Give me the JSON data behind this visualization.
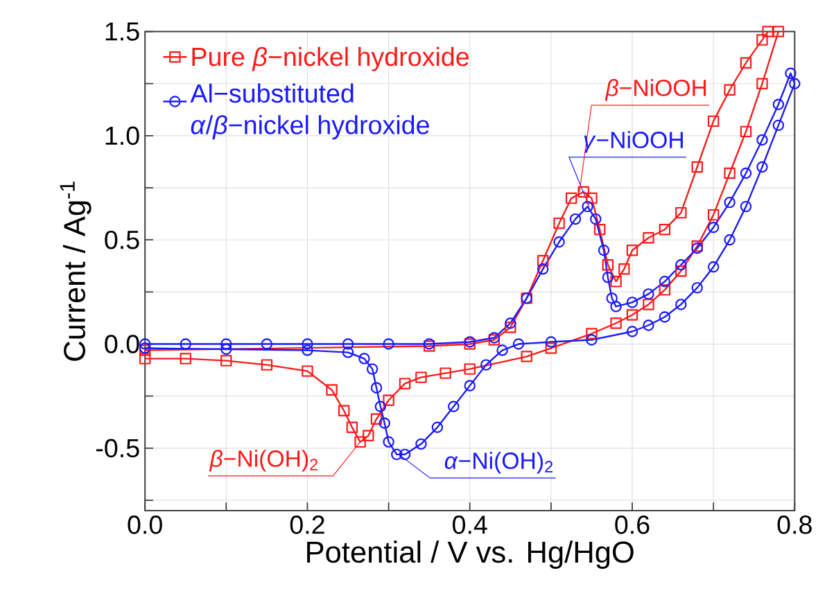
{
  "chart_data": {
    "type": "line",
    "xlabel": "Potential / V vs. Hg/HgO",
    "ylabel": "Current / Ag$^{-1}$",
    "xlim": [
      0,
      0.8
    ],
    "ylim": [
      -0.8,
      1.5
    ],
    "xticks": [
      {
        "value": 0,
        "label": "0.0"
      },
      {
        "value": 0.1,
        "label": null
      },
      {
        "value": 0.2,
        "label": "0.2"
      },
      {
        "value": 0.3,
        "label": null
      },
      {
        "value": 0.4,
        "label": "0.4"
      },
      {
        "value": 0.5,
        "label": null
      },
      {
        "value": 0.6,
        "label": "0.6"
      },
      {
        "value": 0.7,
        "label": null
      },
      {
        "value": 0.8,
        "label": "0.8"
      }
    ],
    "yticks": [
      {
        "value": -0.75,
        "label": null
      },
      {
        "value": -0.5,
        "label": "-0.5"
      },
      {
        "value": -0.25,
        "label": null
      },
      {
        "value": 0,
        "label": "0.0"
      },
      {
        "value": 0.25,
        "label": null
      },
      {
        "value": 0.5,
        "label": "0.5"
      },
      {
        "value": 0.75,
        "label": null
      },
      {
        "value": 1.0,
        "label": "1.0"
      },
      {
        "value": 1.25,
        "label": null
      },
      {
        "value": 1.5,
        "label": "1.5"
      }
    ],
    "grid": true,
    "legend": "top left",
    "line_style": "solid",
    "series": [
      {
        "name": "Pure *β*−nickel hydroxide",
        "color": "#ff1a1a",
        "marker": "square",
        "x": [
          0,
          0.35,
          0.4,
          0.43,
          0.45,
          0.47,
          0.49,
          0.51,
          0.525,
          0.54,
          0.55,
          0.56,
          0.57,
          0.58,
          0.59,
          0.6,
          0.62,
          0.64,
          0.66,
          0.68,
          0.7,
          0.72,
          0.74,
          0.76,
          0.767,
          0.78,
          0.76,
          0.74,
          0.72,
          0.7,
          0.68,
          0.66,
          0.64,
          0.62,
          0.6,
          0.58,
          0.55,
          0.5,
          0.47,
          0.4,
          0.37,
          0.34,
          0.32,
          0.3,
          0.285,
          0.275,
          0.265,
          0.255,
          0.245,
          0.23,
          0.2,
          0.15,
          0.1,
          0.05,
          0
        ],
        "values": [
          -0.03,
          -0.01,
          0.0,
          0.02,
          0.08,
          0.22,
          0.4,
          0.58,
          0.7,
          0.73,
          0.7,
          0.55,
          0.38,
          0.3,
          0.36,
          0.45,
          0.51,
          0.55,
          0.63,
          0.85,
          1.07,
          1.22,
          1.35,
          1.46,
          1.5,
          1.5,
          1.25,
          1.02,
          0.82,
          0.62,
          0.47,
          0.35,
          0.26,
          0.19,
          0.14,
          0.1,
          0.05,
          -0.02,
          -0.06,
          -0.12,
          -0.14,
          -0.16,
          -0.19,
          -0.27,
          -0.36,
          -0.44,
          -0.47,
          -0.4,
          -0.32,
          -0.22,
          -0.13,
          -0.1,
          -0.08,
          -0.07,
          -0.07
        ]
      },
      {
        "name": "Al−substituted *α*/*β*−nickel hydroxide",
        "color": "#1a1aff",
        "marker": "circle",
        "x": [
          0,
          0.05,
          0.1,
          0.15,
          0.2,
          0.25,
          0.3,
          0.35,
          0.4,
          0.43,
          0.45,
          0.47,
          0.49,
          0.51,
          0.53,
          0.545,
          0.555,
          0.565,
          0.57,
          0.575,
          0.58,
          0.6,
          0.62,
          0.64,
          0.66,
          0.68,
          0.7,
          0.72,
          0.74,
          0.76,
          0.78,
          0.795,
          0.8,
          0.78,
          0.76,
          0.74,
          0.72,
          0.7,
          0.68,
          0.66,
          0.64,
          0.62,
          0.6,
          0.55,
          0.5,
          0.46,
          0.44,
          0.42,
          0.4,
          0.38,
          0.36,
          0.34,
          0.32,
          0.31,
          0.3,
          0.295,
          0.29,
          0.285,
          0.28,
          0.27,
          0.25,
          0.2,
          0.1,
          0
        ],
        "values": [
          0,
          0,
          0,
          0,
          0,
          0,
          0,
          0,
          0.01,
          0.03,
          0.1,
          0.22,
          0.36,
          0.49,
          0.6,
          0.66,
          0.6,
          0.45,
          0.32,
          0.22,
          0.18,
          0.2,
          0.24,
          0.3,
          0.38,
          0.46,
          0.56,
          0.68,
          0.82,
          0.98,
          1.15,
          1.3,
          1.25,
          1.05,
          0.85,
          0.66,
          0.5,
          0.37,
          0.27,
          0.19,
          0.13,
          0.09,
          0.06,
          0.02,
          0.01,
          0.0,
          -0.03,
          -0.1,
          -0.2,
          -0.3,
          -0.4,
          -0.48,
          -0.53,
          -0.53,
          -0.47,
          -0.38,
          -0.3,
          -0.21,
          -0.12,
          -0.07,
          -0.04,
          -0.03,
          -0.025,
          -0.02
        ]
      }
    ],
    "annotations": [
      {
        "text": "*β*−NiOOH",
        "x": 0.535,
        "y": 0.73
      },
      {
        "text": "*γ*−NiOOH",
        "x": 0.547,
        "y": 0.66
      },
      {
        "text": "*β*−Ni(OH)$_{2}$",
        "x": 0.265,
        "y": -0.47
      },
      {
        "text": "*α*−Ni(OH)$_{2}$",
        "x": 0.316,
        "y": -0.54
      }
    ]
  }
}
